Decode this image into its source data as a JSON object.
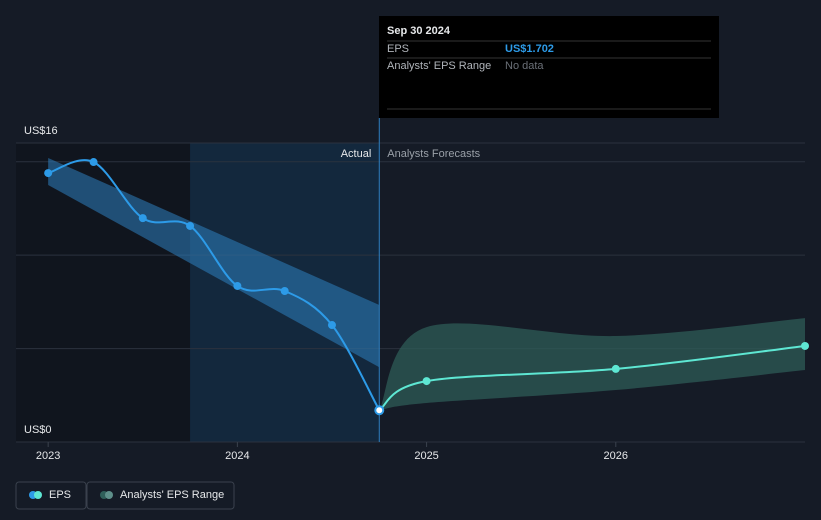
{
  "chart_data": {
    "type": "line",
    "x": [
      2023,
      2023.24,
      2023.5,
      2023.75,
      2024,
      2024.25,
      2024.5,
      2024.75
    ],
    "series": [
      {
        "name": "EPS",
        "color": "#2d9be8",
        "values": [
          14.39,
          14.98,
          11.98,
          11.56,
          8.35,
          8.08,
          6.26,
          1.702
        ]
      },
      {
        "name": "EPS",
        "color": "#5ee7d3",
        "x": [
          2024.75,
          2025,
          2026,
          2027
        ],
        "values": [
          1.702,
          3.26,
          3.91,
          5.14
        ]
      }
    ],
    "ranges": [
      {
        "name": "Analysts' EPS Range",
        "color": "#2d7fc0",
        "x": [
          2023,
          2024.75
        ],
        "upper": [
          15.2,
          7.33
        ],
        "lower": [
          13.75,
          4.0
        ]
      },
      {
        "name": "Analysts' EPS Range",
        "color": "#2f5f5a",
        "x": [
          2024.75,
          2025,
          2026,
          2027
        ],
        "upper": [
          1.702,
          6.15,
          5.67,
          6.63
        ],
        "lower": [
          1.702,
          2.09,
          2.78,
          3.85
        ]
      }
    ],
    "xlim": [
      2022.83,
      2027
    ],
    "ylim": [
      0,
      16
    ],
    "xticks": [
      2023,
      2024,
      2025,
      2026
    ],
    "yticks": [
      {
        "value": 0,
        "label": "US$0"
      },
      {
        "value": 16,
        "label": "US$16"
      }
    ],
    "grid": [
      5,
      10,
      15
    ],
    "past_shade_start": 2023.75,
    "divider": 2024.75,
    "divider_labels": [
      "Actual",
      "Analysts Forecasts"
    ],
    "legend": [
      "EPS",
      "Analysts' EPS Range"
    ],
    "tooltip": {
      "date": "Sep 30 2024",
      "rows": [
        {
          "label": "EPS",
          "value": "US$1.702"
        },
        {
          "label": "Analysts' EPS Range",
          "value": "No data"
        }
      ]
    }
  }
}
